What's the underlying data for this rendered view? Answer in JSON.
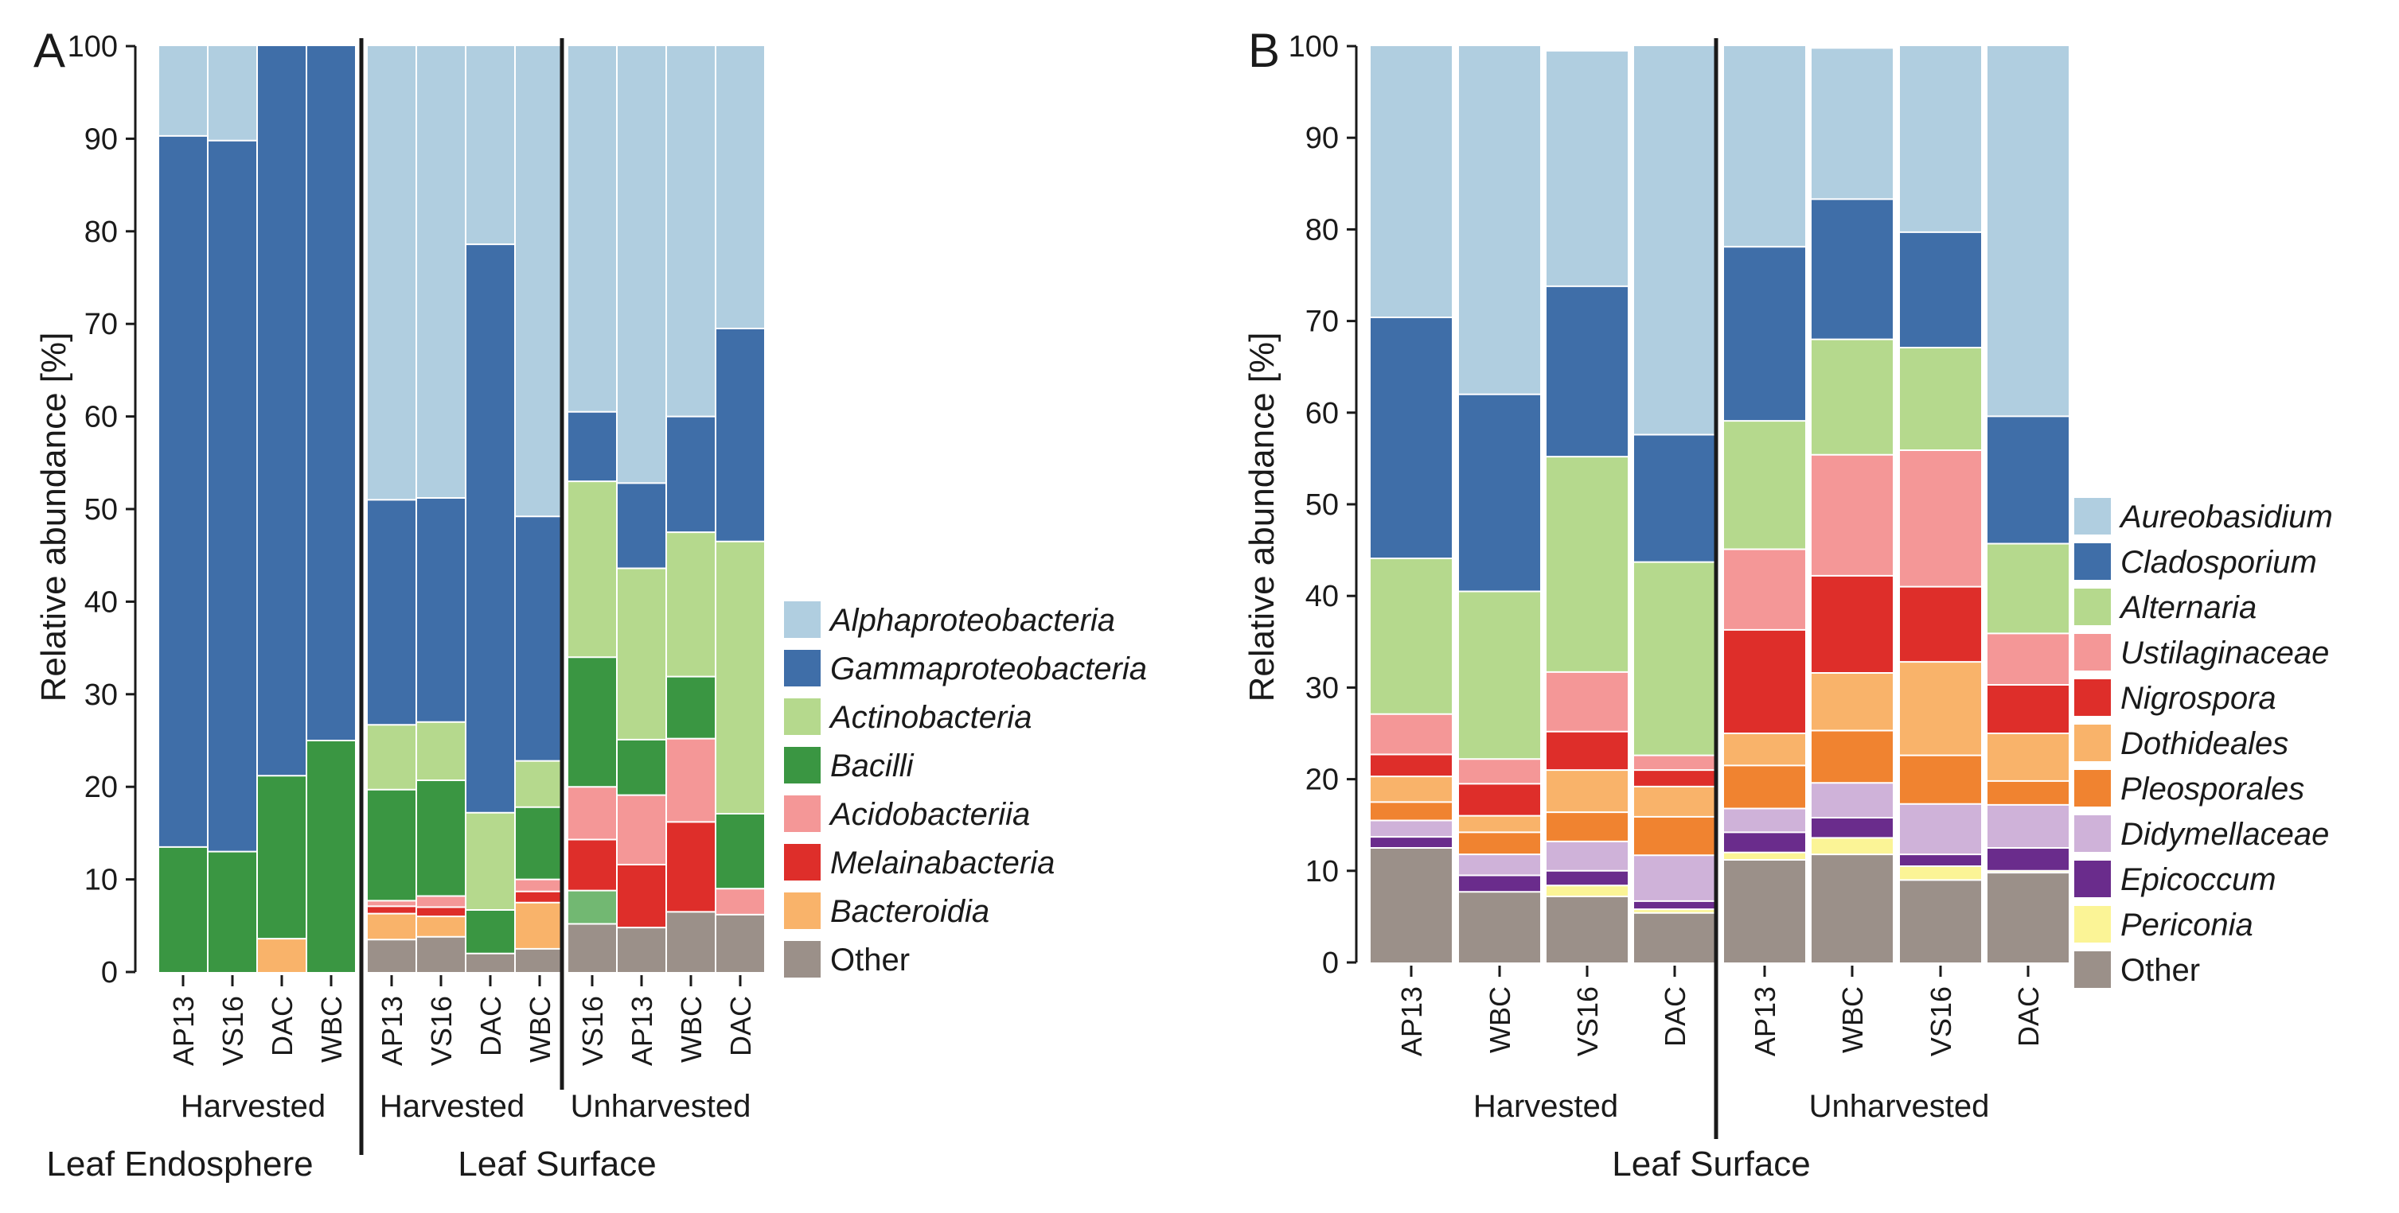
{
  "panels": [
    {
      "label": "A",
      "ylabel": "Relative abundance [%]",
      "sections": [
        "Leaf Endosphere",
        "Leaf Surface"
      ],
      "groups": [
        "Harvested",
        "Harvested",
        "Unharvested"
      ],
      "legend_italic": [
        true,
        true,
        true,
        true,
        true,
        true,
        true,
        false
      ]
    },
    {
      "label": "B",
      "ylabel": "Relative abundance [%]",
      "sections": [
        "Leaf Surface"
      ],
      "groups": [
        "Harvested",
        "Unharvested"
      ],
      "legend_italic": [
        true,
        true,
        true,
        true,
        true,
        true,
        true,
        true,
        true,
        true,
        false
      ]
    }
  ],
  "chart_data": [
    {
      "type": "bar",
      "stacked": true,
      "title": "A",
      "ylabel": "Relative abundance [%]",
      "ylim": [
        0,
        100
      ],
      "yticks": [
        0,
        10,
        20,
        30,
        40,
        50,
        60,
        70,
        80,
        90,
        100
      ],
      "categories": [
        "AP13",
        "VS16",
        "DAC",
        "WBC",
        "AP13",
        "VS16",
        "DAC",
        "WBC",
        "VS16",
        "AP13",
        "WBC",
        "DAC"
      ],
      "series": [
        {
          "name": "Other",
          "color": "#9b9089",
          "values": [
            0,
            0,
            0,
            0,
            3.5,
            3.8,
            2,
            2.5,
            5.2,
            4.8,
            6.5,
            6.2
          ]
        },
        {
          "name": "Green (unlabeled)",
          "color": "#72b872",
          "values": [
            0,
            0,
            0,
            0,
            0,
            0,
            0,
            0,
            3.6,
            0,
            0,
            0
          ]
        },
        {
          "name": "Bacteroidia",
          "color": "#f9b36a",
          "values": [
            0,
            0,
            3.6,
            0,
            2.8,
            2.2,
            0,
            5,
            0,
            0,
            0,
            0
          ]
        },
        {
          "name": "Melainabacteria",
          "color": "#de2e2a",
          "values": [
            0,
            0,
            0,
            0,
            0.8,
            1,
            0,
            1.2,
            5.5,
            6.8,
            9.7,
            0
          ]
        },
        {
          "name": "Acidobacteriia",
          "color": "#f49797",
          "values": [
            0,
            0,
            0,
            0,
            0.6,
            1.2,
            0,
            1.3,
            5.7,
            7.5,
            9,
            2.8
          ]
        },
        {
          "name": "Bacilli",
          "color": "#3a9642",
          "values": [
            13.5,
            13,
            17.6,
            25,
            12,
            12.5,
            4.7,
            7.8,
            14,
            6,
            6.7,
            8.1
          ]
        },
        {
          "name": "Actinobacteria",
          "color": "#b5d98d",
          "values": [
            0,
            0,
            0,
            0,
            7,
            6.3,
            10.5,
            5,
            19,
            18.5,
            15.6,
            29.4
          ]
        },
        {
          "name": "Gammaproteobacteria",
          "color": "#3f6ea8",
          "values": [
            76.8,
            76.8,
            78.8,
            75,
            24.3,
            24.2,
            61.4,
            26.4,
            7.5,
            9.2,
            12.5,
            23
          ]
        },
        {
          "name": "Alphaproteobacteria",
          "color": "#b0cee0",
          "values": [
            9.7,
            10.2,
            0,
            0,
            49,
            48.8,
            21.4,
            50.8,
            39.5,
            47.2,
            40,
            30.5
          ]
        }
      ],
      "groups": [
        {
          "name": "Harvested",
          "section": "Leaf Endosphere",
          "categories": [
            "AP13",
            "VS16",
            "DAC",
            "WBC"
          ]
        },
        {
          "name": "Harvested",
          "section": "Leaf Surface",
          "categories": [
            "AP13",
            "VS16",
            "DAC",
            "WBC"
          ]
        },
        {
          "name": "Unharvested",
          "section": "Leaf Surface",
          "categories": [
            "VS16",
            "AP13",
            "WBC",
            "DAC"
          ]
        }
      ],
      "legend": [
        "Alphaproteobacteria",
        "Gammaproteobacteria",
        "Actinobacteria",
        "Bacilli",
        "Acidobacteriia",
        "Melainabacteria",
        "Bacteroidia",
        "Other"
      ],
      "legend_colors": [
        "#b0cee0",
        "#3f6ea8",
        "#b5d98d",
        "#3a9642",
        "#f49797",
        "#de2e2a",
        "#f9b36a",
        "#9b9089"
      ]
    },
    {
      "type": "bar",
      "stacked": true,
      "title": "B",
      "ylabel": "Relative abundance [%]",
      "ylim": [
        0,
        100
      ],
      "yticks": [
        0,
        10,
        20,
        30,
        40,
        50,
        60,
        70,
        80,
        90,
        100
      ],
      "categories": [
        "AP13",
        "WBC",
        "VS16",
        "DAC",
        "AP13",
        "WBC",
        "VS16",
        "DAC"
      ],
      "series": [
        {
          "name": "Other",
          "color": "#9b9089",
          "values": [
            12.5,
            7.7,
            7.2,
            5.4,
            11.2,
            11.8,
            9,
            9.8
          ]
        },
        {
          "name": "Periconia",
          "color": "#fbf496",
          "values": [
            0,
            0,
            1.2,
            0.4,
            0.8,
            1.8,
            1.5,
            0.2
          ]
        },
        {
          "name": "Epicoccum",
          "color": "#6a2c8c",
          "values": [
            1.2,
            1.8,
            1.6,
            0.9,
            2.2,
            2.2,
            1.3,
            2.5
          ]
        },
        {
          "name": "Didymellaceae",
          "color": "#cfb2d9",
          "values": [
            1.8,
            2.3,
            3.2,
            5,
            2.6,
            3.8,
            5.5,
            4.7
          ]
        },
        {
          "name": "Pleosporales",
          "color": "#f08330",
          "values": [
            2,
            2.4,
            3.2,
            4.2,
            4.7,
            5.7,
            5.3,
            2.6
          ]
        },
        {
          "name": "Dothideales",
          "color": "#f9b36a",
          "values": [
            2.8,
            1.8,
            4.6,
            3.3,
            3.5,
            6.3,
            10.2,
            5.2
          ]
        },
        {
          "name": "Nigrospora",
          "color": "#de2e2a",
          "values": [
            2.4,
            3.5,
            4.2,
            1.8,
            11.3,
            10.6,
            8.2,
            5.3
          ]
        },
        {
          "name": "Ustilaginaceae",
          "color": "#f49797",
          "values": [
            4.4,
            2.7,
            6.5,
            1.6,
            8.8,
            13.2,
            14.9,
            5.6
          ]
        },
        {
          "name": "Alternaria",
          "color": "#b5d98d",
          "values": [
            17,
            18.3,
            23.5,
            21.1,
            14,
            12.6,
            11.2,
            9.8
          ]
        },
        {
          "name": "Cladosporium",
          "color": "#3f6ea8",
          "values": [
            26.3,
            21.5,
            18.6,
            13.9,
            19,
            15.3,
            12.6,
            13.9
          ]
        },
        {
          "name": "Aureobasidium",
          "color": "#b0cee0",
          "values": [
            29.6,
            38,
            25.7,
            42.4,
            21.9,
            16.5,
            20.3,
            40.4
          ]
        }
      ],
      "groups": [
        {
          "name": "Harvested",
          "section": "Leaf Surface",
          "categories": [
            "AP13",
            "WBC",
            "VS16",
            "DAC"
          ]
        },
        {
          "name": "Unharvested",
          "section": "Leaf Surface",
          "categories": [
            "AP13",
            "WBC",
            "VS16",
            "DAC"
          ]
        }
      ],
      "legend": [
        "Aureobasidium",
        "Cladosporium",
        "Alternaria",
        "Ustilaginaceae",
        "Nigrospora",
        "Dothideales",
        "Pleosporales",
        "Didymellaceae",
        "Epicoccum",
        "Periconia",
        "Other"
      ],
      "legend_colors": [
        "#b0cee0",
        "#3f6ea8",
        "#b5d98d",
        "#f49797",
        "#de2e2a",
        "#f9b36a",
        "#f08330",
        "#cfb2d9",
        "#6a2c8c",
        "#fbf496",
        "#9b9089"
      ]
    }
  ]
}
